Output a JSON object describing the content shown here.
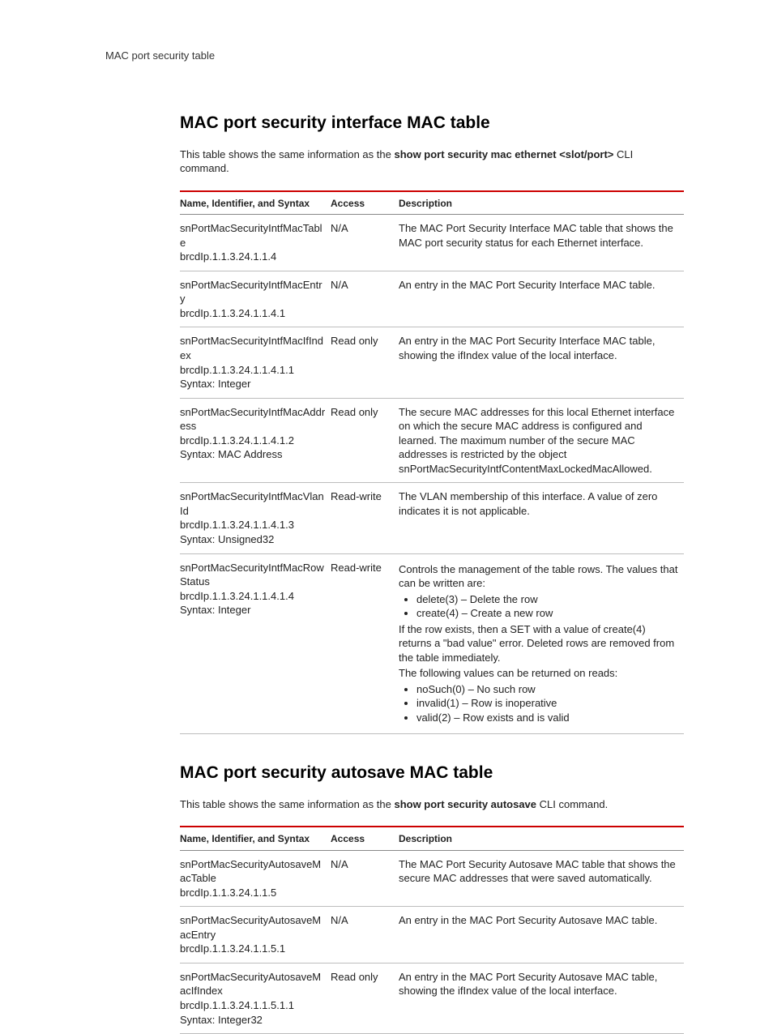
{
  "running_head": "MAC port security table",
  "section1": {
    "heading": "MAC port security interface MAC table",
    "intro_prefix": "This table shows the same information as the ",
    "intro_cmd": "show port security mac ethernet <slot/port>",
    "intro_suffix": " CLI command.",
    "columns": {
      "name": "Name, Identifier, and Syntax",
      "access": "Access",
      "desc": "Description"
    },
    "rows": [
      {
        "name_l1": "snPortMacSecurityIntfMacTable",
        "name_l2": "brcdIp.1.1.3.24.1.1.4",
        "name_l3": "",
        "access": "N/A",
        "desc": "The MAC Port Security Interface MAC table that shows the MAC port security status for each Ethernet interface."
      },
      {
        "name_l1": "snPortMacSecurityIntfMacEntry",
        "name_l2": "brcdIp.1.1.3.24.1.1.4.1",
        "name_l3": "",
        "access": "N/A",
        "desc": "An entry in the MAC Port Security Interface MAC table."
      },
      {
        "name_l1": "snPortMacSecurityIntfMacIfIndex",
        "name_l2": "brcdIp.1.1.3.24.1.1.4.1.1",
        "name_l3": "Syntax: Integer",
        "access": "Read only",
        "desc": "An entry in the MAC Port Security Interface MAC table, showing the ifIndex value of the local interface."
      },
      {
        "name_l1": "snPortMacSecurityIntfMacAddress",
        "name_l2": "brcdIp.1.1.3.24.1.1.4.1.2",
        "name_l3": "Syntax: MAC Address",
        "access": "Read only",
        "desc": "The secure MAC addresses for this local Ethernet interface on which the secure MAC address is configured and learned. The maximum number of the secure MAC addresses is restricted by the object snPortMacSecurityIntfContentMaxLockedMacAllowed."
      },
      {
        "name_l1": "snPortMacSecurityIntfMacVlanId",
        "name_l2": "brcdIp.1.1.3.24.1.1.4.1.3",
        "name_l3": "Syntax: Unsigned32",
        "access": "Read-write",
        "desc": "The VLAN membership of this interface. A value of zero indicates it is not applicable."
      },
      {
        "name_l1": "snPortMacSecurityIntfMacRowStatus",
        "name_l2": "brcdIp.1.1.3.24.1.1.4.1.4",
        "name_l3": "Syntax: Integer",
        "access": "Read-write",
        "desc_struct": {
          "p1": "Controls the management of the table rows. The values that can be written are:",
          "li1": "delete(3) – Delete the row",
          "li2": "create(4) – Create a new row",
          "p2": "If the row exists, then a SET with a value of create(4) returns a \"bad value\" error. Deleted rows are removed from the table immediately.",
          "p3": "The following values can be returned on reads:",
          "li3": "noSuch(0) – No such row",
          "li4": "invalid(1) – Row is inoperative",
          "li5": "valid(2) – Row exists and is valid"
        }
      }
    ]
  },
  "section2": {
    "heading": "MAC port security autosave MAC table",
    "intro_prefix": "This table shows the same information as the ",
    "intro_cmd": "show port security autosave",
    "intro_suffix": " CLI command.",
    "columns": {
      "name": "Name, Identifier, and Syntax",
      "access": "Access",
      "desc": "Description"
    },
    "rows": [
      {
        "name_l1": "snPortMacSecurityAutosaveMacTable",
        "name_l2": "brcdIp.1.1.3.24.1.1.5",
        "name_l3": "",
        "access": "N/A",
        "desc": "The MAC Port Security Autosave MAC table that shows the secure MAC addresses that were saved automatically."
      },
      {
        "name_l1": "snPortMacSecurityAutosaveMacEntry",
        "name_l2": "brcdIp.1.1.3.24.1.1.5.1",
        "name_l3": "",
        "access": "N/A",
        "desc": "An entry in the MAC Port Security Autosave MAC table."
      },
      {
        "name_l1": "snPortMacSecurityAutosaveMacIfIndex",
        "name_l2": "brcdIp.1.1.3.24.1.1.5.1.1",
        "name_l3": "Syntax: Integer32",
        "access": "Read only",
        "desc": "An entry in the MAC Port Security Autosave MAC table, showing the ifIndex value of the local interface."
      }
    ]
  }
}
